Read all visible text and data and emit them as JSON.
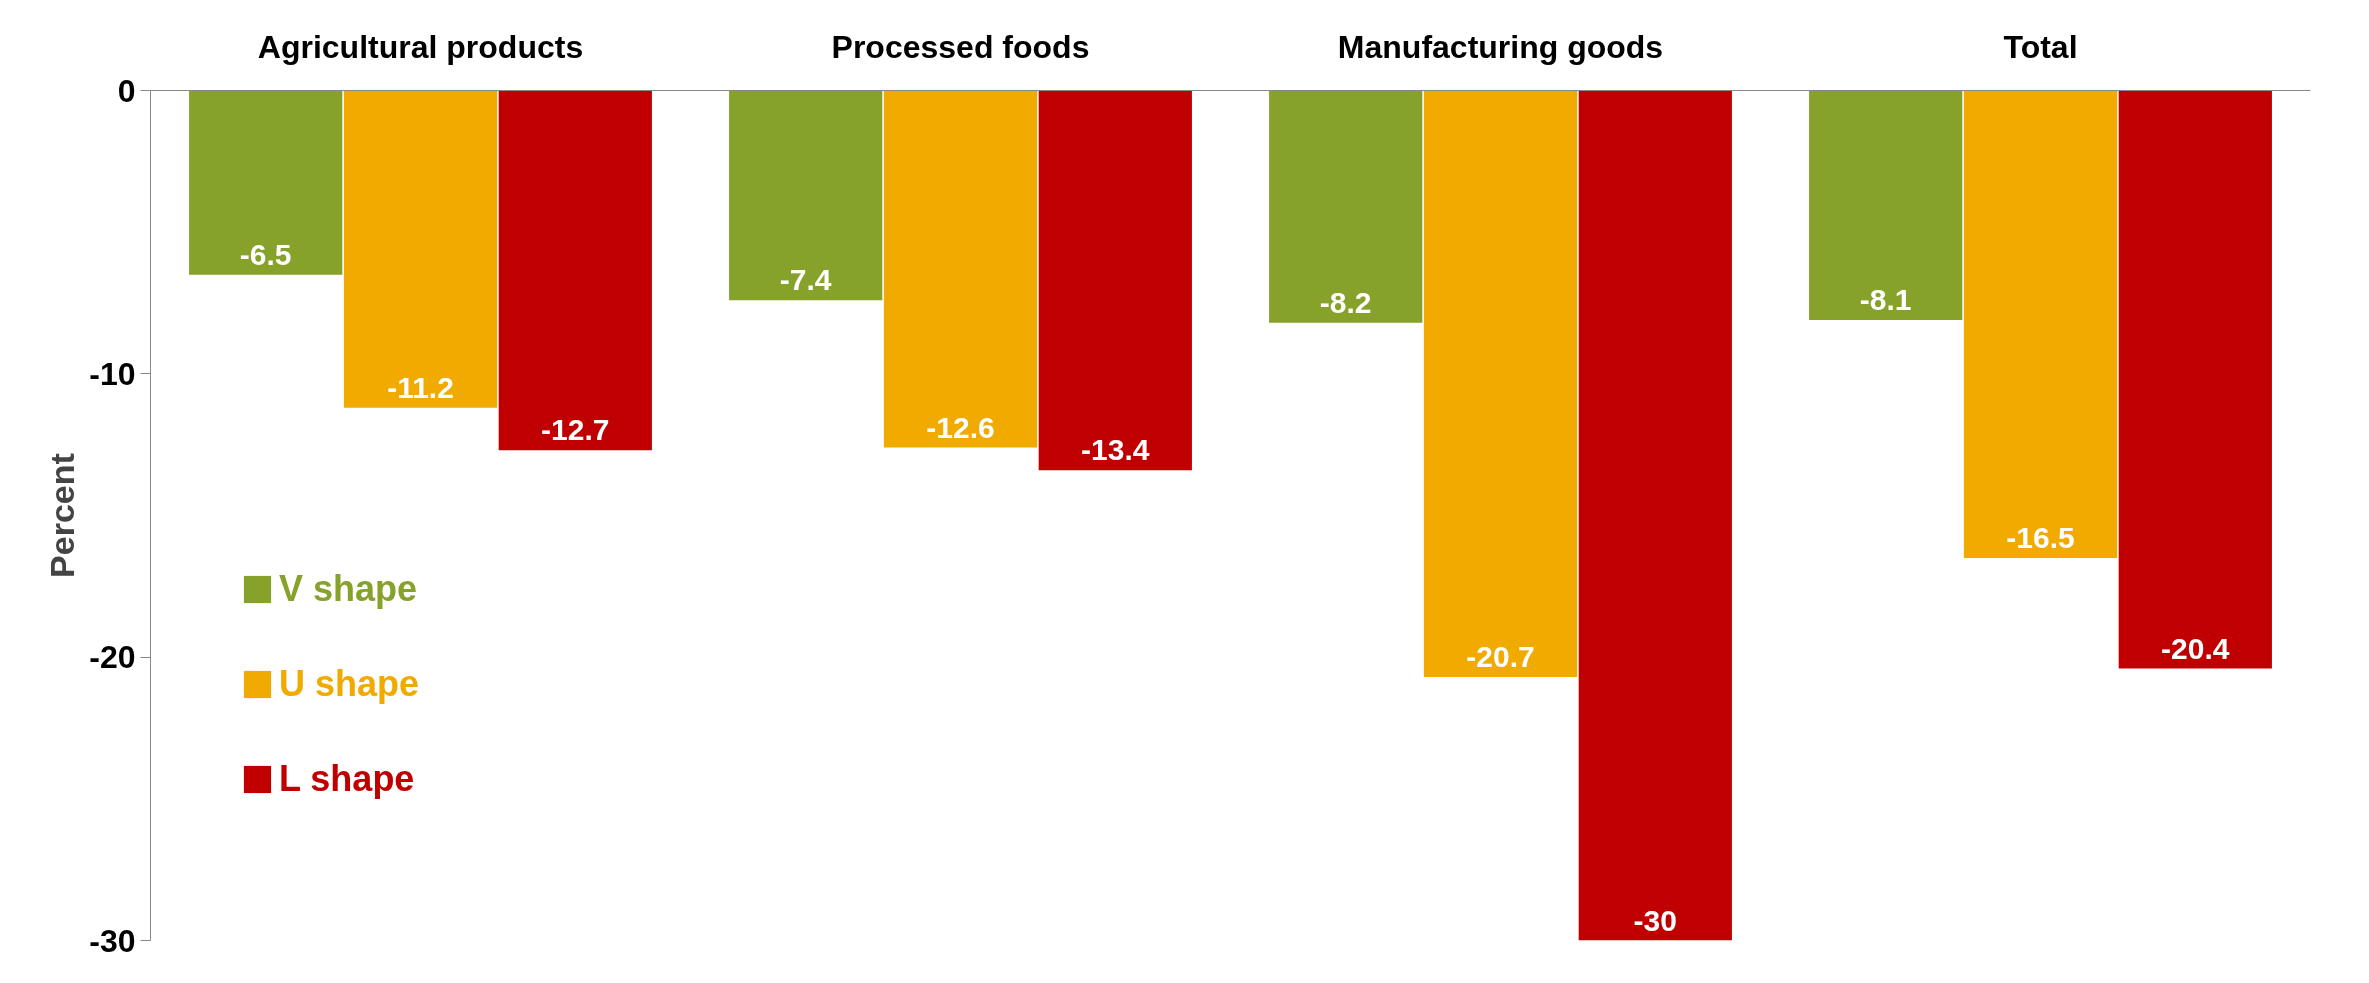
{
  "chart_data": {
    "type": "bar",
    "ylabel": "Percent",
    "categories": [
      "Agricultural products",
      "Processed foods",
      "Manufacturing goods",
      "Total"
    ],
    "series": [
      {
        "name": "V shape",
        "color": "#86a22a",
        "values": [
          -6.5,
          -7.4,
          -8.2,
          -8.1
        ]
      },
      {
        "name": "U shape",
        "color": "#f0aa00",
        "values": [
          -11.2,
          -12.6,
          -20.7,
          -16.5
        ]
      },
      {
        "name": "L shape",
        "color": "#c00000",
        "values": [
          -12.7,
          -13.4,
          -30,
          -20.4
        ]
      }
    ],
    "ylim": [
      -30,
      0
    ],
    "yticks": [
      0,
      -10,
      -20,
      -30
    ],
    "grid": false,
    "legend": "left",
    "data_labels": true
  }
}
